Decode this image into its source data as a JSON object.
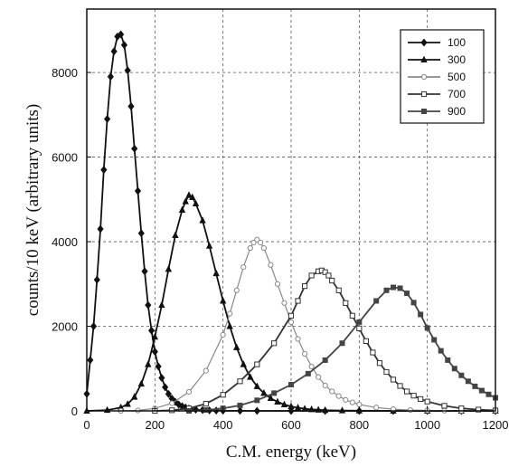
{
  "chart_data": {
    "type": "line",
    "xlabel": "C.M. energy (keV)",
    "ylabel": "counts/10 keV  (arbitrary units)",
    "xlim": [
      0,
      1200
    ],
    "ylim": [
      0,
      9500
    ],
    "x_ticks": [
      0,
      200,
      400,
      600,
      800,
      1000,
      1200
    ],
    "x_tick_labels": [
      "0",
      "200",
      "400",
      "600",
      "800",
      "1000",
      "1200"
    ],
    "y_ticks": [
      0,
      2000,
      4000,
      6000,
      8000
    ],
    "y_tick_labels": [
      "0",
      "2000",
      "4000",
      "6000",
      "8000"
    ],
    "grid": true,
    "legend_position": "top-right",
    "series": [
      {
        "name": "100",
        "marker": "diamond",
        "color": "#111111",
        "x": [
          0,
          10,
          20,
          30,
          40,
          50,
          60,
          70,
          80,
          90,
          100,
          110,
          120,
          130,
          140,
          150,
          160,
          170,
          180,
          190,
          200,
          210,
          220,
          230,
          240,
          250,
          260,
          270,
          280,
          290,
          300,
          320,
          340,
          360,
          380,
          400,
          450,
          500,
          600,
          700,
          800,
          900,
          1000,
          1100,
          1200
        ],
        "y": [
          400,
          1200,
          2000,
          3100,
          4300,
          5700,
          6900,
          7900,
          8500,
          8850,
          8900,
          8650,
          8050,
          7200,
          6200,
          5200,
          4200,
          3300,
          2500,
          1900,
          1400,
          1050,
          780,
          560,
          400,
          290,
          210,
          150,
          110,
          80,
          55,
          30,
          20,
          12,
          8,
          5,
          3,
          0,
          0,
          0,
          0,
          0,
          0,
          0,
          0
        ]
      },
      {
        "name": "300",
        "marker": "triangle",
        "color": "#111111",
        "x": [
          0,
          60,
          100,
          120,
          140,
          160,
          180,
          200,
          220,
          240,
          260,
          280,
          290,
          300,
          310,
          320,
          340,
          360,
          380,
          400,
          420,
          440,
          460,
          480,
          500,
          520,
          540,
          560,
          580,
          600,
          620,
          640,
          660,
          680,
          700,
          750,
          800,
          900,
          1000,
          1100,
          1200
        ],
        "y": [
          0,
          20,
          80,
          160,
          330,
          640,
          1100,
          1750,
          2500,
          3350,
          4150,
          4750,
          4950,
          5100,
          5050,
          4900,
          4500,
          3900,
          3250,
          2600,
          2000,
          1500,
          1100,
          800,
          580,
          420,
          300,
          215,
          150,
          105,
          75,
          50,
          35,
          25,
          15,
          8,
          5,
          0,
          0,
          0,
          0
        ]
      },
      {
        "name": "500",
        "marker": "circle",
        "color": "#888888",
        "x": [
          100,
          150,
          200,
          250,
          300,
          350,
          400,
          420,
          440,
          460,
          480,
          490,
          500,
          510,
          520,
          540,
          560,
          580,
          600,
          620,
          640,
          660,
          680,
          700,
          720,
          740,
          760,
          780,
          800,
          850,
          900,
          950,
          1000,
          1050,
          1100,
          1200
        ],
        "y": [
          0,
          10,
          60,
          180,
          450,
          950,
          1800,
          2300,
          2850,
          3400,
          3850,
          3980,
          4050,
          3980,
          3850,
          3450,
          3000,
          2550,
          2100,
          1700,
          1350,
          1050,
          800,
          600,
          460,
          350,
          260,
          200,
          150,
          80,
          40,
          20,
          10,
          5,
          2,
          0
        ]
      },
      {
        "name": "700",
        "marker": "square-open",
        "color": "#333333",
        "x": [
          200,
          250,
          300,
          350,
          400,
          450,
          500,
          550,
          600,
          620,
          640,
          660,
          680,
          690,
          700,
          710,
          720,
          740,
          760,
          780,
          800,
          820,
          840,
          860,
          880,
          900,
          920,
          940,
          960,
          980,
          1000,
          1050,
          1100,
          1150,
          1200
        ],
        "y": [
          0,
          15,
          60,
          170,
          380,
          700,
          1100,
          1600,
          2250,
          2600,
          2950,
          3200,
          3300,
          3320,
          3280,
          3200,
          3080,
          2850,
          2550,
          2250,
          1950,
          1650,
          1380,
          1130,
          920,
          740,
          590,
          460,
          360,
          280,
          220,
          120,
          60,
          30,
          10
        ]
      },
      {
        "name": "900",
        "marker": "square-filled",
        "color": "#444444",
        "x": [
          300,
          350,
          400,
          450,
          500,
          550,
          600,
          650,
          700,
          750,
          800,
          850,
          880,
          900,
          920,
          940,
          960,
          980,
          1000,
          1020,
          1040,
          1060,
          1080,
          1100,
          1120,
          1140,
          1160,
          1180,
          1200
        ],
        "y": [
          0,
          20,
          60,
          130,
          250,
          420,
          620,
          880,
          1200,
          1600,
          2100,
          2600,
          2850,
          2920,
          2900,
          2780,
          2560,
          2280,
          1960,
          1680,
          1420,
          1200,
          1000,
          840,
          700,
          580,
          480,
          390,
          310
        ]
      }
    ]
  }
}
